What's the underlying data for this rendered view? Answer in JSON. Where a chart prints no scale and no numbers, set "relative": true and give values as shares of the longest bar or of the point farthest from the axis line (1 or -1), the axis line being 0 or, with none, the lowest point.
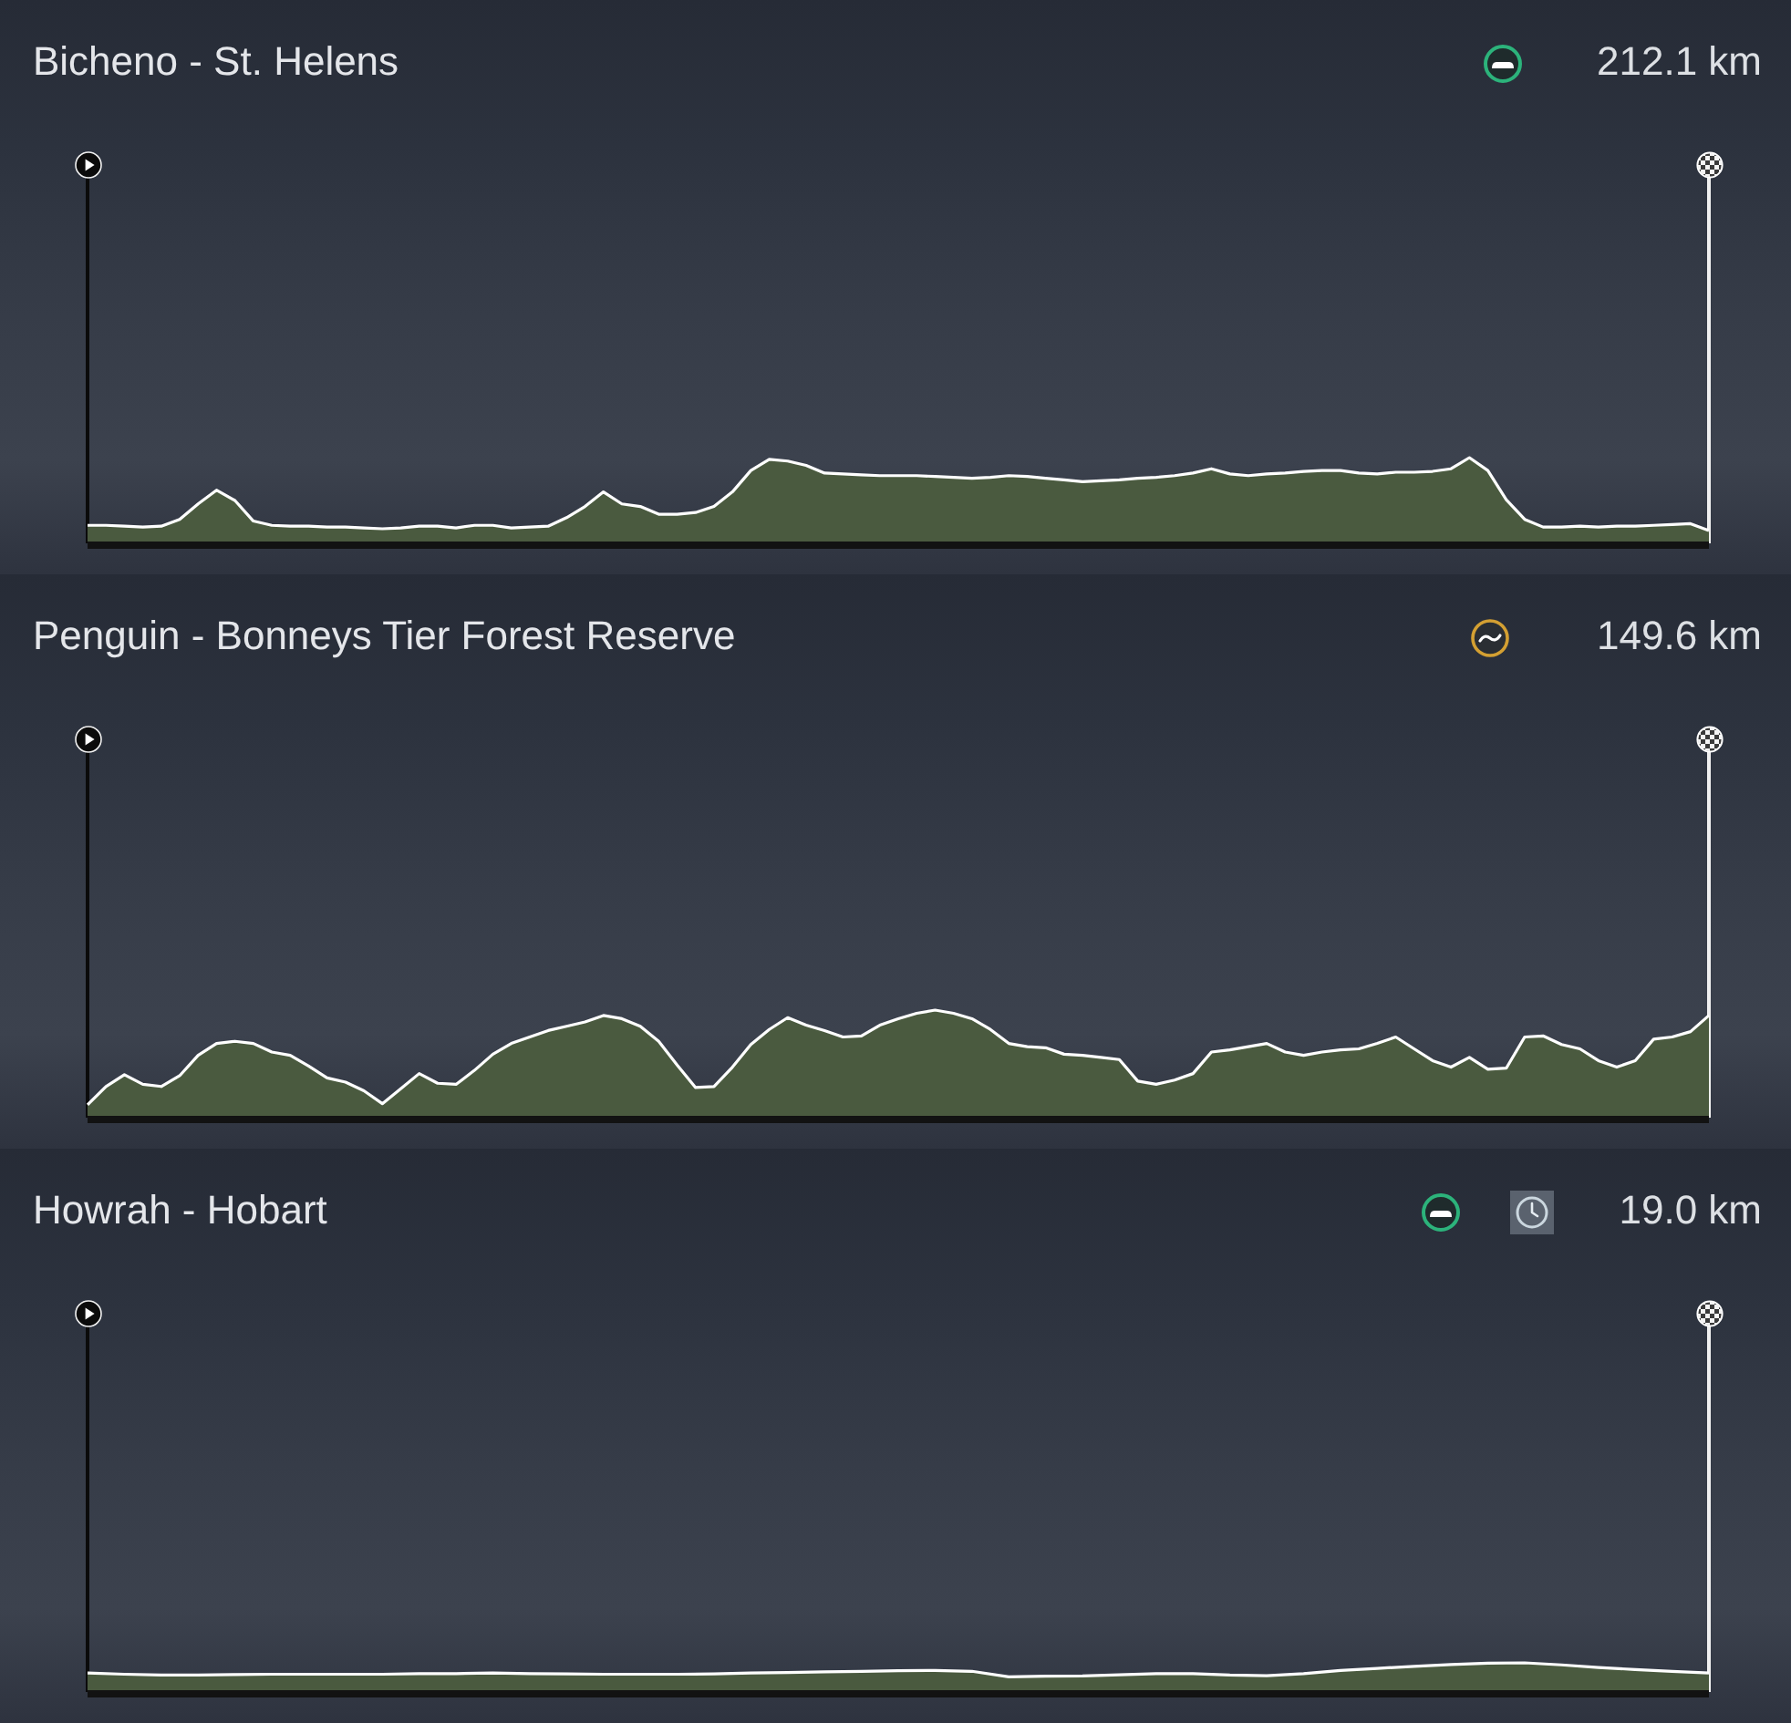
{
  "chart_data": [
    {
      "type": "area",
      "title": "Bicheno - St. Helens",
      "annotations": [
        "212.1 km"
      ],
      "categories": [
        null,
        null,
        null,
        null,
        null,
        null,
        null,
        null,
        null,
        null,
        null,
        null,
        null,
        null,
        null,
        null,
        null,
        null,
        null,
        null,
        null,
        null,
        null,
        null,
        null,
        null,
        null,
        null,
        null,
        null,
        null,
        null,
        null,
        null,
        null,
        null,
        null,
        null,
        null,
        null,
        null,
        null,
        null,
        null,
        null,
        null,
        null,
        null,
        null,
        null,
        null,
        null,
        null,
        null,
        null,
        null,
        null,
        null,
        null,
        null,
        null,
        null,
        null,
        null,
        null,
        null,
        null,
        null,
        null,
        null,
        null,
        null,
        null,
        null,
        null,
        null,
        null,
        null,
        null,
        null,
        null,
        null,
        null,
        null,
        null,
        null,
        null,
        null,
        null
      ],
      "values": [
        0.21,
        0.21,
        0.2,
        0.19,
        0.2,
        0.28,
        0.46,
        0.62,
        0.5,
        0.26,
        0.21,
        0.2,
        0.2,
        0.19,
        0.19,
        0.18,
        0.17,
        0.18,
        0.2,
        0.2,
        0.18,
        0.21,
        0.21,
        0.18,
        0.19,
        0.2,
        0.3,
        0.43,
        0.6,
        0.46,
        0.43,
        0.34,
        0.34,
        0.36,
        0.43,
        0.6,
        0.85,
        0.98,
        0.96,
        0.91,
        0.82,
        0.81,
        0.8,
        0.79,
        0.79,
        0.79,
        0.78,
        0.77,
        0.76,
        0.77,
        0.79,
        0.78,
        0.76,
        0.74,
        0.72,
        0.73,
        0.74,
        0.76,
        0.77,
        0.79,
        0.82,
        0.87,
        0.81,
        0.79,
        0.81,
        0.82,
        0.84,
        0.85,
        0.85,
        0.82,
        0.81,
        0.83,
        0.83,
        0.84,
        0.87,
        1,
        0.85,
        0.51,
        0.28,
        0.19,
        0.19,
        0.2,
        0.19,
        0.2,
        0.2,
        0.21,
        0.22,
        0.23,
        0.15
      ],
      "color": "#4a5a3f",
      "relative": true
    },
    {
      "type": "area",
      "title": "Penguin - Bonneys Tier Forest Reserve",
      "annotations": [
        "149.6 km"
      ],
      "categories": [
        null,
        null,
        null,
        null,
        null,
        null,
        null,
        null,
        null,
        null,
        null,
        null,
        null,
        null,
        null,
        null,
        null,
        null,
        null,
        null,
        null,
        null,
        null,
        null,
        null,
        null,
        null,
        null,
        null,
        null,
        null,
        null,
        null,
        null,
        null,
        null,
        null,
        null,
        null,
        null,
        null,
        null,
        null,
        null,
        null,
        null,
        null,
        null,
        null,
        null,
        null,
        null,
        null,
        null,
        null,
        null,
        null,
        null,
        null,
        null,
        null,
        null,
        null,
        null,
        null,
        null,
        null,
        null,
        null,
        null,
        null,
        null,
        null,
        null,
        null,
        null,
        null,
        null,
        null,
        null,
        null,
        null,
        null,
        null,
        null,
        null,
        null,
        null,
        null
      ],
      "values": [
        0.12,
        0.29,
        0.4,
        0.31,
        0.29,
        0.39,
        0.58,
        0.69,
        0.71,
        0.69,
        0.61,
        0.58,
        0.48,
        0.37,
        0.33,
        0.25,
        0.13,
        0.27,
        0.41,
        0.32,
        0.31,
        0.44,
        0.59,
        0.69,
        0.75,
        0.81,
        0.85,
        0.89,
        0.95,
        0.92,
        0.85,
        0.71,
        0.49,
        0.28,
        0.29,
        0.47,
        0.68,
        0.82,
        0.93,
        0.86,
        0.81,
        0.75,
        0.76,
        0.86,
        0.92,
        0.97,
        1,
        0.97,
        0.92,
        0.82,
        0.69,
        0.66,
        0.65,
        0.59,
        0.58,
        0.56,
        0.54,
        0.34,
        0.31,
        0.35,
        0.41,
        0.61,
        0.63,
        0.66,
        0.69,
        0.61,
        0.58,
        0.61,
        0.63,
        0.64,
        0.69,
        0.75,
        0.64,
        0.53,
        0.47,
        0.56,
        0.45,
        0.46,
        0.75,
        0.76,
        0.68,
        0.64,
        0.53,
        0.47,
        0.53,
        0.73,
        0.75,
        0.8,
        0.95
      ],
      "color": "#4a5a3f",
      "relative": true
    },
    {
      "type": "area",
      "title": "Howrah - Hobart",
      "annotations": [
        "19.0 km"
      ],
      "categories": [
        null,
        null,
        null,
        null,
        null,
        null,
        null,
        null,
        null,
        null,
        null,
        null,
        null,
        null,
        null,
        null,
        null,
        null,
        null,
        null,
        null,
        null,
        null,
        null,
        null,
        null,
        null,
        null,
        null,
        null,
        null,
        null,
        null,
        null,
        null,
        null,
        null,
        null,
        null,
        null,
        null,
        null,
        null,
        null,
        null
      ],
      "values": [
        0.65,
        0.61,
        0.58,
        0.58,
        0.6,
        0.61,
        0.61,
        0.61,
        0.61,
        0.63,
        0.63,
        0.65,
        0.63,
        0.62,
        0.61,
        0.61,
        0.61,
        0.62,
        0.65,
        0.67,
        0.69,
        0.71,
        0.73,
        0.74,
        0.71,
        0.52,
        0.54,
        0.55,
        0.59,
        0.63,
        0.63,
        0.58,
        0.56,
        0.63,
        0.74,
        0.81,
        0.88,
        0.94,
        0.99,
        1,
        0.93,
        0.84,
        0.77,
        0.71,
        0.65
      ],
      "color": "#4a5a3f",
      "relative": true
    }
  ]
}
